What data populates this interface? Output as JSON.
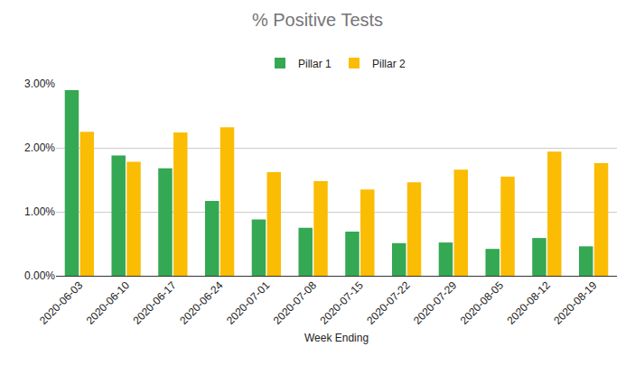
{
  "chart_data": {
    "type": "bar",
    "title": "% Positive Tests",
    "x_label": "Week Ending",
    "categories": [
      "2020-06-03",
      "2020-06-10",
      "2020-06-17",
      "2020-06-24",
      "2020-07-01",
      "2020-07-08",
      "2020-07-15",
      "2020-07-22",
      "2020-07-29",
      "2020-08-05",
      "2020-08-12",
      "2020-08-19"
    ],
    "series": [
      {
        "name": "Pillar 1",
        "color": "#34a853",
        "values": [
          2.9,
          1.88,
          1.68,
          1.17,
          0.88,
          0.75,
          0.69,
          0.51,
          0.52,
          0.42,
          0.59,
          0.46
        ]
      },
      {
        "name": "Pillar 2",
        "color": "#fbbc04",
        "values": [
          2.25,
          1.78,
          2.24,
          2.32,
          1.62,
          1.48,
          1.35,
          1.46,
          1.66,
          1.55,
          1.94,
          1.76
        ]
      }
    ],
    "ylim": [
      0,
      3
    ],
    "yticks": [
      {
        "value": 0,
        "label": "0.00%"
      },
      {
        "value": 1,
        "label": "1.00%"
      },
      {
        "value": 2,
        "label": "2.00%"
      },
      {
        "value": 3,
        "label": "3.00%"
      }
    ],
    "grid": true,
    "legend": "top"
  }
}
